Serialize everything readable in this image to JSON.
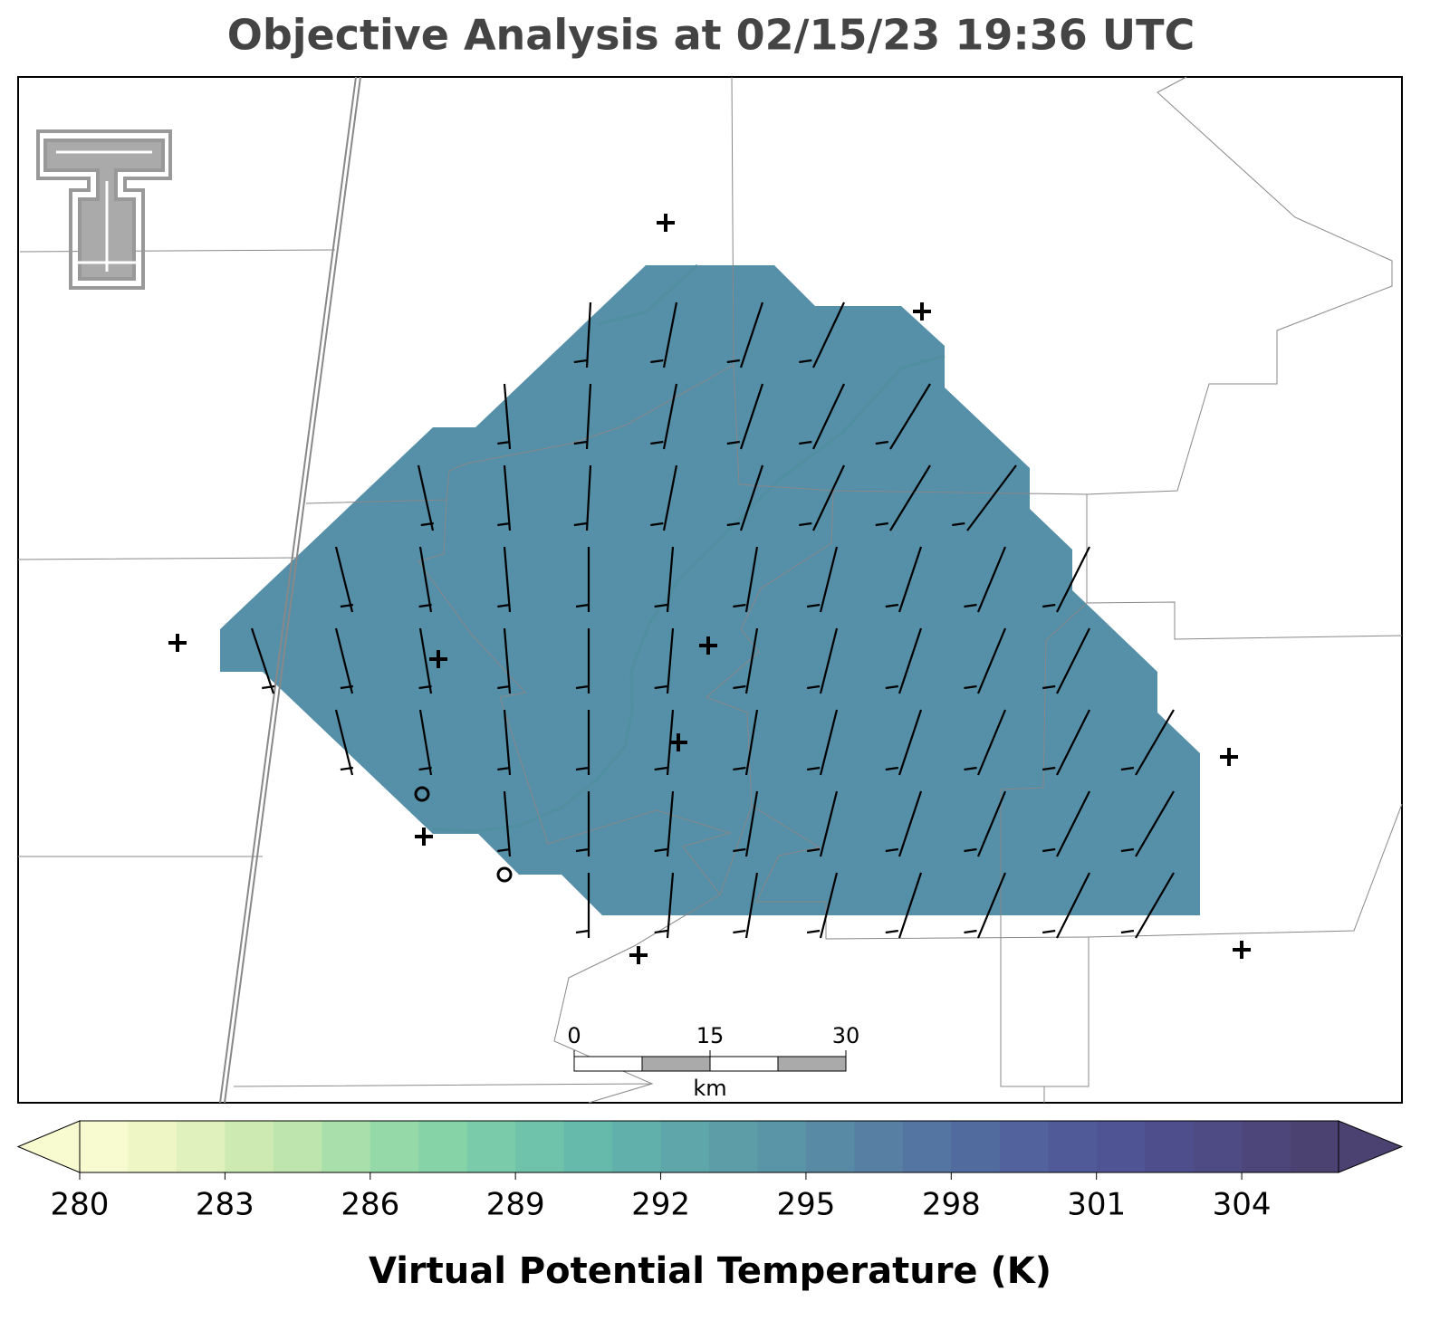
{
  "title": "Objective Analysis at 02/15/23 19:36 UTC",
  "colorbar": {
    "label": "Virtual Potential Temperature (K)",
    "levels": [
      280,
      281,
      282,
      283,
      284,
      285,
      286,
      287,
      288,
      289,
      290,
      291,
      292,
      293,
      294,
      295,
      296,
      297,
      298,
      299,
      300,
      301,
      302,
      303,
      304,
      305,
      306
    ],
    "ticks": [
      280,
      283,
      286,
      289,
      292,
      295,
      298,
      301,
      304
    ],
    "colors": [
      "#f8fad0",
      "#eef6c6",
      "#e0f1bd",
      "#ceeab3",
      "#bde5ad",
      "#a9dfab",
      "#96d9a8",
      "#86d3a8",
      "#7acbaa",
      "#6fc3ab",
      "#66baac",
      "#61b0ab",
      "#5ea6a9",
      "#5c9da8",
      "#5a94a7",
      "#5889a5",
      "#567fa3",
      "#5475a1",
      "#526b9f",
      "#51629c",
      "#505a98",
      "#4f5494",
      "#4f4e8c",
      "#4e4a84",
      "#4d467b",
      "#4b4271"
    ],
    "extend": "both"
  },
  "scale_bar": {
    "ticks": [
      0,
      15,
      30
    ],
    "unit": "km"
  }
}
